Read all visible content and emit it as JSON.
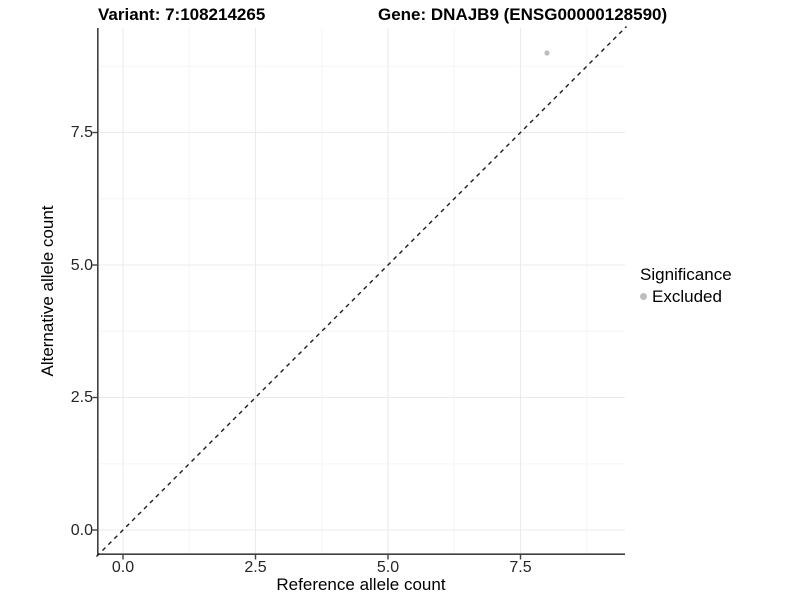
{
  "chart_data": {
    "type": "scatter",
    "titles": {
      "left": "Variant: 7:108214265",
      "right": "Gene: DNAJB9 (ENSG00000128590)"
    },
    "xlabel": "Reference allele count",
    "ylabel": "Alternative allele count",
    "xlim": [
      -0.5,
      9.5
    ],
    "ylim": [
      -0.5,
      9.5
    ],
    "x_ticks": {
      "values": [
        0,
        2.5,
        5,
        7.5
      ],
      "labels": [
        "0.0",
        "2.5",
        "5.0",
        "7.5"
      ]
    },
    "y_ticks": {
      "values": [
        0,
        2.5,
        5,
        7.5
      ],
      "labels": [
        "0.0",
        "2.5",
        "5.0",
        "7.5"
      ]
    },
    "minor_tick_values": [
      1.25,
      3.75,
      6.25,
      8.75
    ],
    "grid": "major+minor",
    "identity_line": {
      "style": "dashed",
      "from": [
        -0.5,
        -0.5
      ],
      "to": [
        9.5,
        9.5
      ]
    },
    "series": [
      {
        "name": "Excluded",
        "color": "#bdbdbd",
        "points": [
          {
            "x": 8,
            "y": 9
          }
        ]
      }
    ],
    "legend": {
      "position": "right",
      "title": "Significance",
      "entries": [
        {
          "label": "Excluded",
          "color": "#bdbdbd"
        }
      ]
    }
  },
  "colors": {
    "background": "#ffffff",
    "grid_major": "#ebebeb",
    "grid_minor": "#f5f5f5",
    "axis_line": "#404040",
    "identity_line": "#1a1a1a",
    "title_text": "#000000",
    "tick_text": "#262626",
    "point": "#bdbdbd"
  }
}
